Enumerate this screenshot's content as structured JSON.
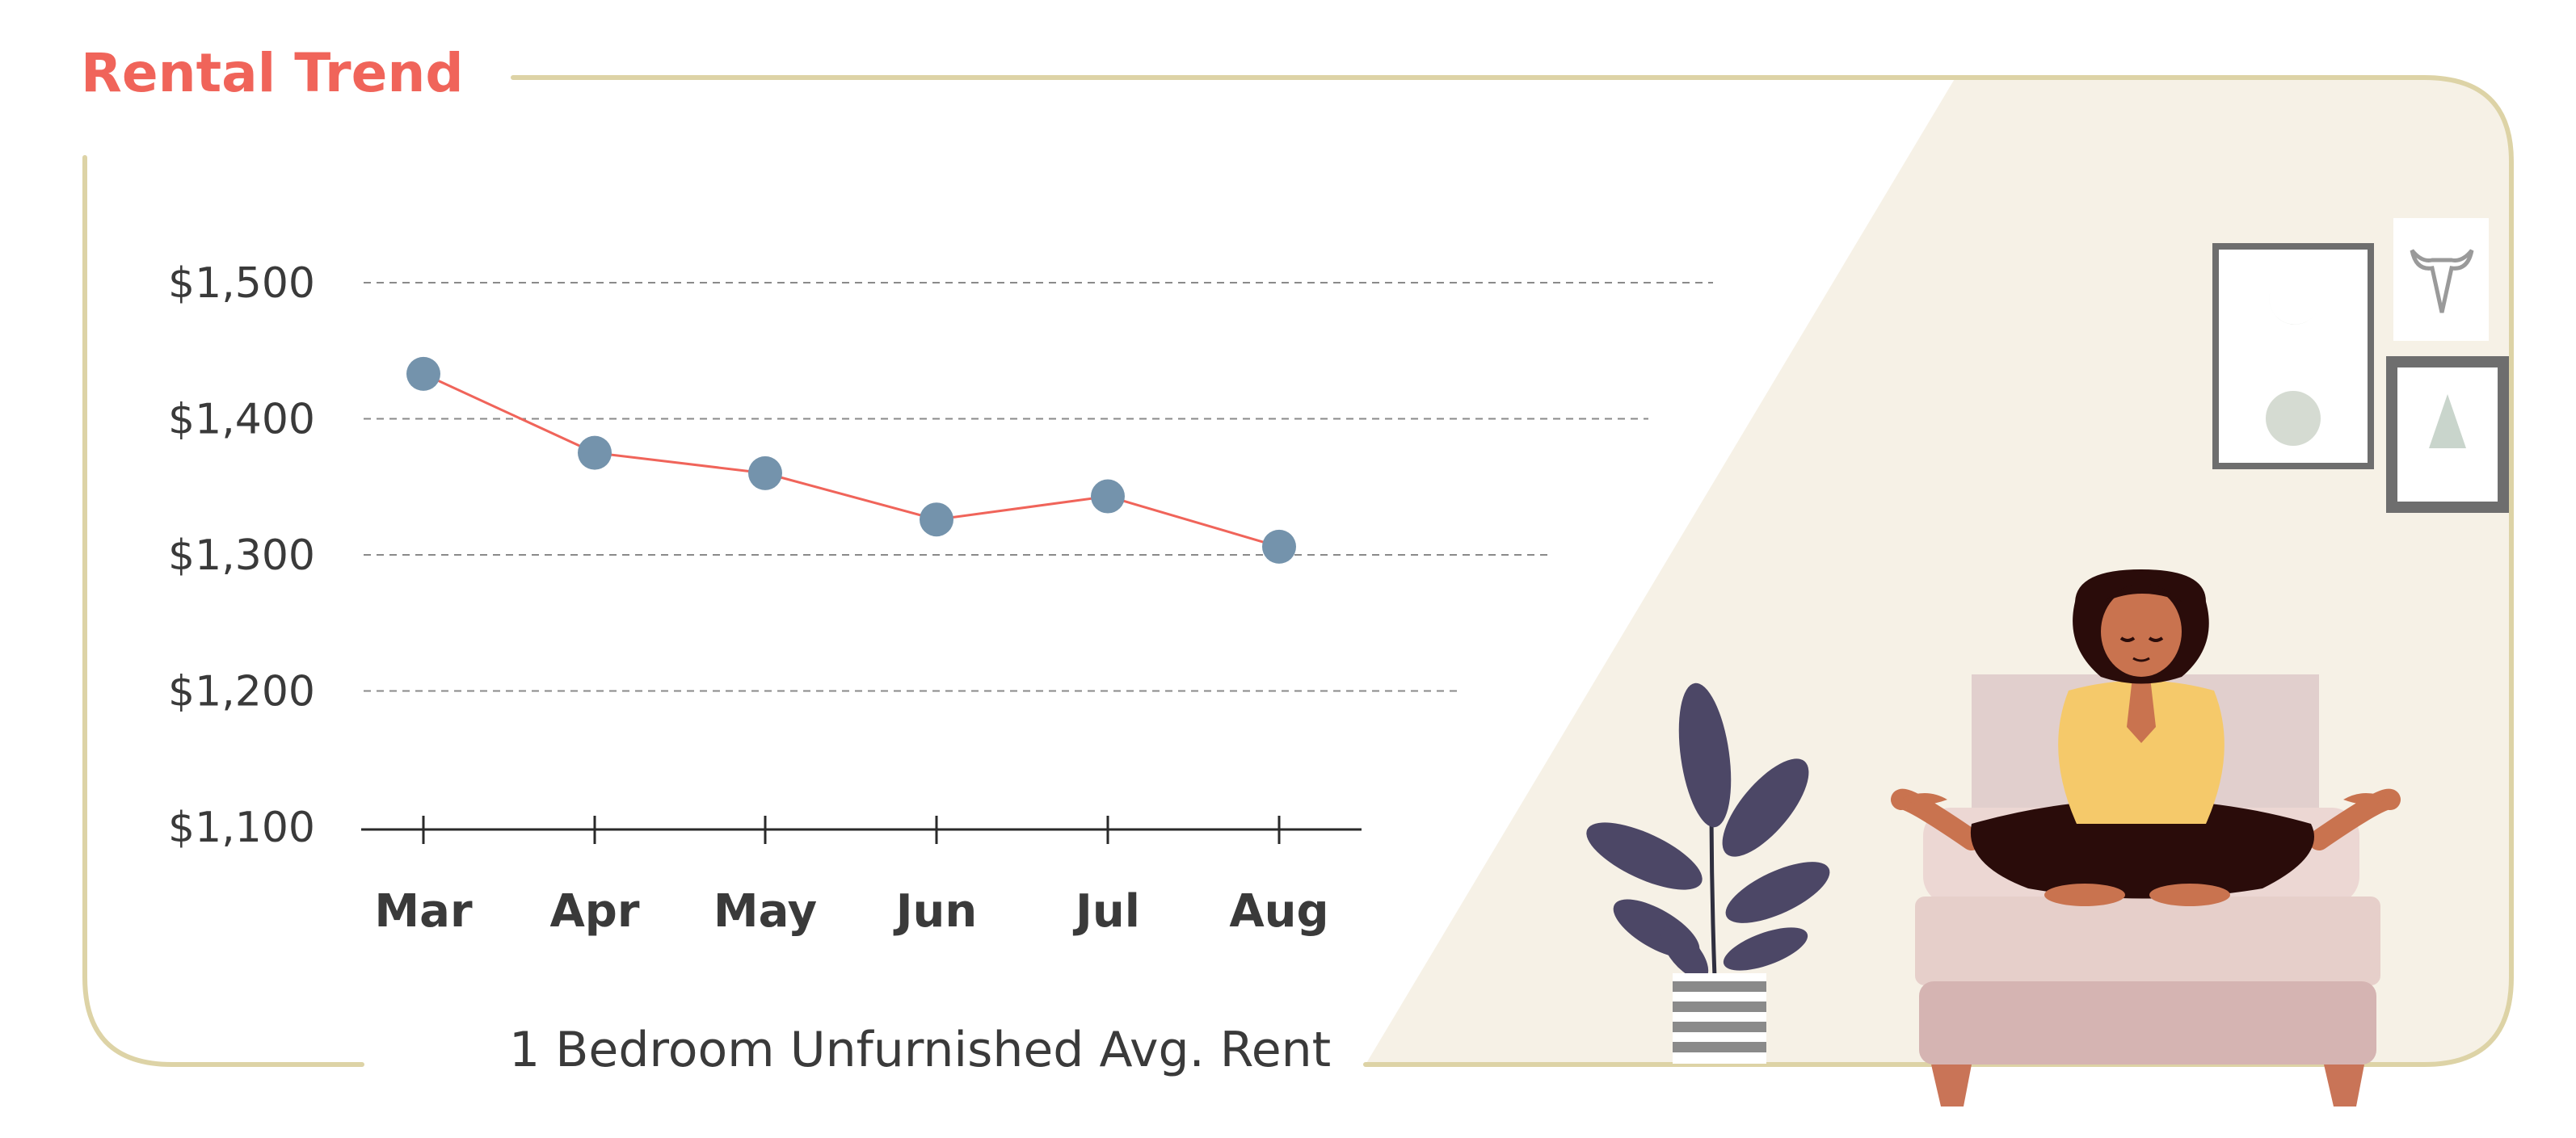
{
  "title": "Rental Trend",
  "subtitle": "1 Bedroom Unfurnished Avg. Rent",
  "colors": {
    "title": "#f0645a",
    "line": "#f0645a",
    "point": "#7493ac",
    "frame": "#ddd3a6",
    "room_bg": "#f6f1e6",
    "text": "#3a3a3a",
    "grid": "#8a8a8a"
  },
  "chart_data": {
    "type": "line",
    "title": "Rental Trend",
    "xlabel": "1 Bedroom Unfurnished Avg. Rent",
    "ylabel": "",
    "categories": [
      "Mar",
      "Apr",
      "May",
      "Jun",
      "Jul",
      "Aug"
    ],
    "series": [
      {
        "values": [
          1433,
          1375,
          1360,
          1326,
          1343,
          1306
        ]
      }
    ],
    "ylim": [
      1100,
      1500
    ],
    "yticks": [
      1100,
      1200,
      1300,
      1400,
      1500
    ],
    "ytick_labels": [
      "$1,100",
      "$1,200",
      "$1,300",
      "$1,400",
      "$1,500"
    ],
    "grid": true,
    "legend": "none"
  },
  "illustration": {
    "icons": [
      "meditating-woman-icon",
      "potted-plant-icon",
      "moon-phases-frame-icon",
      "triangle-frame-icon",
      "bull-skull-frame-icon",
      "bed-icon"
    ]
  }
}
